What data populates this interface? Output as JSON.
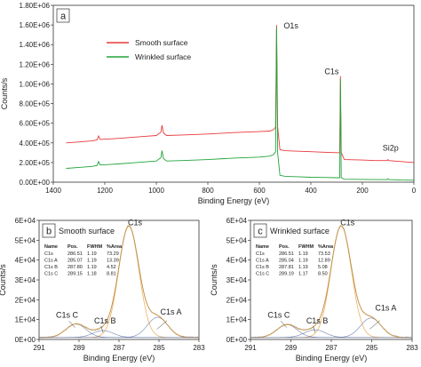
{
  "chart_data": [
    {
      "id": "a",
      "type": "line",
      "panel_label": "a",
      "xlabel": "Binding Energy (eV)",
      "ylabel": "Counts/s",
      "xlim": [
        1400,
        0
      ],
      "ylim": [
        0,
        1800000
      ],
      "x_ticks": [
        1400,
        1200,
        1000,
        800,
        600,
        400,
        200,
        0
      ],
      "y_ticks": [
        0,
        200000,
        400000,
        600000,
        800000,
        1000000,
        1200000,
        1400000,
        1600000,
        1800000
      ],
      "x_tick_labels": [
        "1400",
        "1200",
        "1000",
        "800",
        "600",
        "400",
        "200",
        "0"
      ],
      "y_tick_labels": [
        "0.00E+00",
        "2.00E+05",
        "4.00E+05",
        "6.00E+05",
        "8.00E+05",
        "1.00E+06",
        "1.20E+06",
        "1.40E+06",
        "1.60E+06",
        "1.80E+06"
      ],
      "legend_position": "upper-left",
      "series": [
        {
          "name": "Smooth surface",
          "color": "#e8383b",
          "points": [
            [
              1350,
              400000
            ],
            [
              1300,
              410000
            ],
            [
              1250,
              420000
            ],
            [
              1230,
              430000
            ],
            [
              1224,
              470000
            ],
            [
              1218,
              435000
            ],
            [
              1150,
              445000
            ],
            [
              1100,
              455000
            ],
            [
              1050,
              465000
            ],
            [
              1000,
              475000
            ],
            [
              982,
              510000
            ],
            [
              978,
              580000
            ],
            [
              972,
              500000
            ],
            [
              960,
              475000
            ],
            [
              900,
              480000
            ],
            [
              800,
              490000
            ],
            [
              700,
              505000
            ],
            [
              600,
              515000
            ],
            [
              560,
              520000
            ],
            [
              545,
              535000
            ],
            [
              537,
              560000
            ],
            [
              533,
              1600000
            ],
            [
              529,
              560000
            ],
            [
              520,
              330000
            ],
            [
              500,
              320000
            ],
            [
              450,
              315000
            ],
            [
              400,
              310000
            ],
            [
              350,
              305000
            ],
            [
              300,
              300000
            ],
            [
              288,
              300000
            ],
            [
              285,
              1080000
            ],
            [
              282,
              300000
            ],
            [
              270,
              230000
            ],
            [
              200,
              225000
            ],
            [
              150,
              220000
            ],
            [
              104,
              220000
            ],
            [
              101,
              230000
            ],
            [
              98,
              220000
            ],
            [
              50,
              210000
            ],
            [
              0,
              200000
            ]
          ]
        },
        {
          "name": "Wrinkled surface",
          "color": "#22a33a",
          "points": [
            [
              1350,
              140000
            ],
            [
              1300,
              150000
            ],
            [
              1250,
              160000
            ],
            [
              1230,
              170000
            ],
            [
              1224,
              210000
            ],
            [
              1218,
              175000
            ],
            [
              1150,
              185000
            ],
            [
              1100,
              195000
            ],
            [
              1050,
              205000
            ],
            [
              1000,
              215000
            ],
            [
              982,
              250000
            ],
            [
              978,
              320000
            ],
            [
              972,
              240000
            ],
            [
              960,
              215000
            ],
            [
              900,
              220000
            ],
            [
              800,
              230000
            ],
            [
              700,
              245000
            ],
            [
              600,
              255000
            ],
            [
              560,
              265000
            ],
            [
              545,
              280000
            ],
            [
              537,
              310000
            ],
            [
              533,
              1580000
            ],
            [
              529,
              300000
            ],
            [
              520,
              70000
            ],
            [
              500,
              60000
            ],
            [
              450,
              55000
            ],
            [
              400,
              50000
            ],
            [
              350,
              48000
            ],
            [
              300,
              45000
            ],
            [
              288,
              45000
            ],
            [
              285,
              1050000
            ],
            [
              282,
              45000
            ],
            [
              270,
              30000
            ],
            [
              200,
              28000
            ],
            [
              150,
              26000
            ],
            [
              104,
              26000
            ],
            [
              101,
              36000
            ],
            [
              98,
              26000
            ],
            [
              50,
              22000
            ],
            [
              0,
              20000
            ]
          ]
        }
      ],
      "annotations": [
        {
          "text": "O1s",
          "x": 533,
          "y": 1600000
        },
        {
          "text": "C1s",
          "x": 285,
          "y": 1080000
        },
        {
          "text": "Si2p",
          "x": 101,
          "y": 230000
        }
      ]
    },
    {
      "id": "b",
      "type": "line",
      "panel_label": "b",
      "title": "Smooth surface",
      "xlabel": "Binding Energy (eV)",
      "ylabel": "Counts/s",
      "xlim": [
        291,
        283
      ],
      "ylim": [
        0,
        60000
      ],
      "x_ticks": [
        291,
        289,
        287,
        285,
        283
      ],
      "y_ticks": [
        0,
        10000,
        20000,
        30000,
        40000,
        50000,
        60000
      ],
      "x_tick_labels": [
        "291",
        "289",
        "287",
        "285",
        "283"
      ],
      "y_tick_labels": [
        "0E+00",
        "1E+04",
        "2E+04",
        "3E+04",
        "4E+04",
        "5E+04",
        "6E+04"
      ],
      "table": {
        "headers": [
          "Name",
          "Pos.",
          "FWHM",
          "%Area"
        ],
        "rows": [
          [
            "C1s",
            "286.51",
            "1.19",
            "73.29"
          ],
          [
            "C1s A",
            "285.07",
            "1.19",
            "13.39"
          ],
          [
            "C1s B",
            "287.80",
            "1.19",
            "4.52"
          ],
          [
            "C1s C",
            "289.15",
            "1.18",
            "8.81"
          ]
        ]
      },
      "baseline": 1000,
      "components": [
        {
          "name": "C1s",
          "center": 286.51,
          "fwhm": 1.19,
          "height": 56000
        },
        {
          "name": "C1s A",
          "center": 285.07,
          "fwhm": 1.19,
          "height": 10200
        },
        {
          "name": "C1s B",
          "center": 287.8,
          "fwhm": 1.19,
          "height": 3500
        },
        {
          "name": "C1s C",
          "center": 289.15,
          "fwhm": 1.18,
          "height": 6800
        }
      ],
      "annotations": [
        {
          "text": "C1s",
          "x": 286.2,
          "y": 57500
        },
        {
          "text": "C1s A",
          "x": 284.4,
          "y": 12500
        },
        {
          "text": "C1s B",
          "x": 287.7,
          "y": 8000
        },
        {
          "text": "C1s C",
          "x": 289.6,
          "y": 11000
        }
      ]
    },
    {
      "id": "c",
      "type": "line",
      "panel_label": "c",
      "title": "Wrinkled surface",
      "xlabel": "Binding Energy (eV)",
      "ylabel": "Counts/s",
      "xlim": [
        291,
        283
      ],
      "ylim": [
        0,
        60000
      ],
      "x_ticks": [
        291,
        289,
        287,
        285,
        283
      ],
      "y_ticks": [
        0,
        10000,
        20000,
        30000,
        40000,
        50000,
        60000
      ],
      "x_tick_labels": [
        "291",
        "289",
        "287",
        "285",
        "283"
      ],
      "y_tick_labels": [
        "0E+00",
        "1E+04",
        "2E+04",
        "3E+04",
        "4E+04",
        "5E+04",
        "6E+04"
      ],
      "table": {
        "headers": [
          "Name",
          "Pos.",
          "FWHM",
          "%Area"
        ],
        "rows": [
          [
            "C1s",
            "286.51",
            "1.19",
            "73.53"
          ],
          [
            "C1s A",
            "285.04",
            "1.19",
            "12.89"
          ],
          [
            "C1s B",
            "287.81",
            "1.19",
            "5.08"
          ],
          [
            "C1s C",
            "289.19",
            "1.17",
            "8.50"
          ]
        ]
      },
      "baseline": 1000,
      "components": [
        {
          "name": "C1s",
          "center": 286.51,
          "fwhm": 1.19,
          "height": 56000
        },
        {
          "name": "C1s A",
          "center": 285.04,
          "fwhm": 1.19,
          "height": 9800
        },
        {
          "name": "C1s B",
          "center": 287.81,
          "fwhm": 1.19,
          "height": 3900
        },
        {
          "name": "C1s C",
          "center": 289.19,
          "fwhm": 1.17,
          "height": 6500
        }
      ],
      "annotations": [
        {
          "text": "C1s",
          "x": 286.2,
          "y": 57500
        },
        {
          "text": "C1s A",
          "x": 284.3,
          "y": 14500
        },
        {
          "text": "C1s B",
          "x": 287.7,
          "y": 8000
        },
        {
          "text": "C1s C",
          "x": 289.6,
          "y": 11000
        }
      ]
    }
  ],
  "colors": {
    "smooth": "#e8383b",
    "wrinkled": "#22a33a",
    "envelope": "#e8a13a",
    "component": "#5c6f9f",
    "raw": "#8a8a8a"
  }
}
